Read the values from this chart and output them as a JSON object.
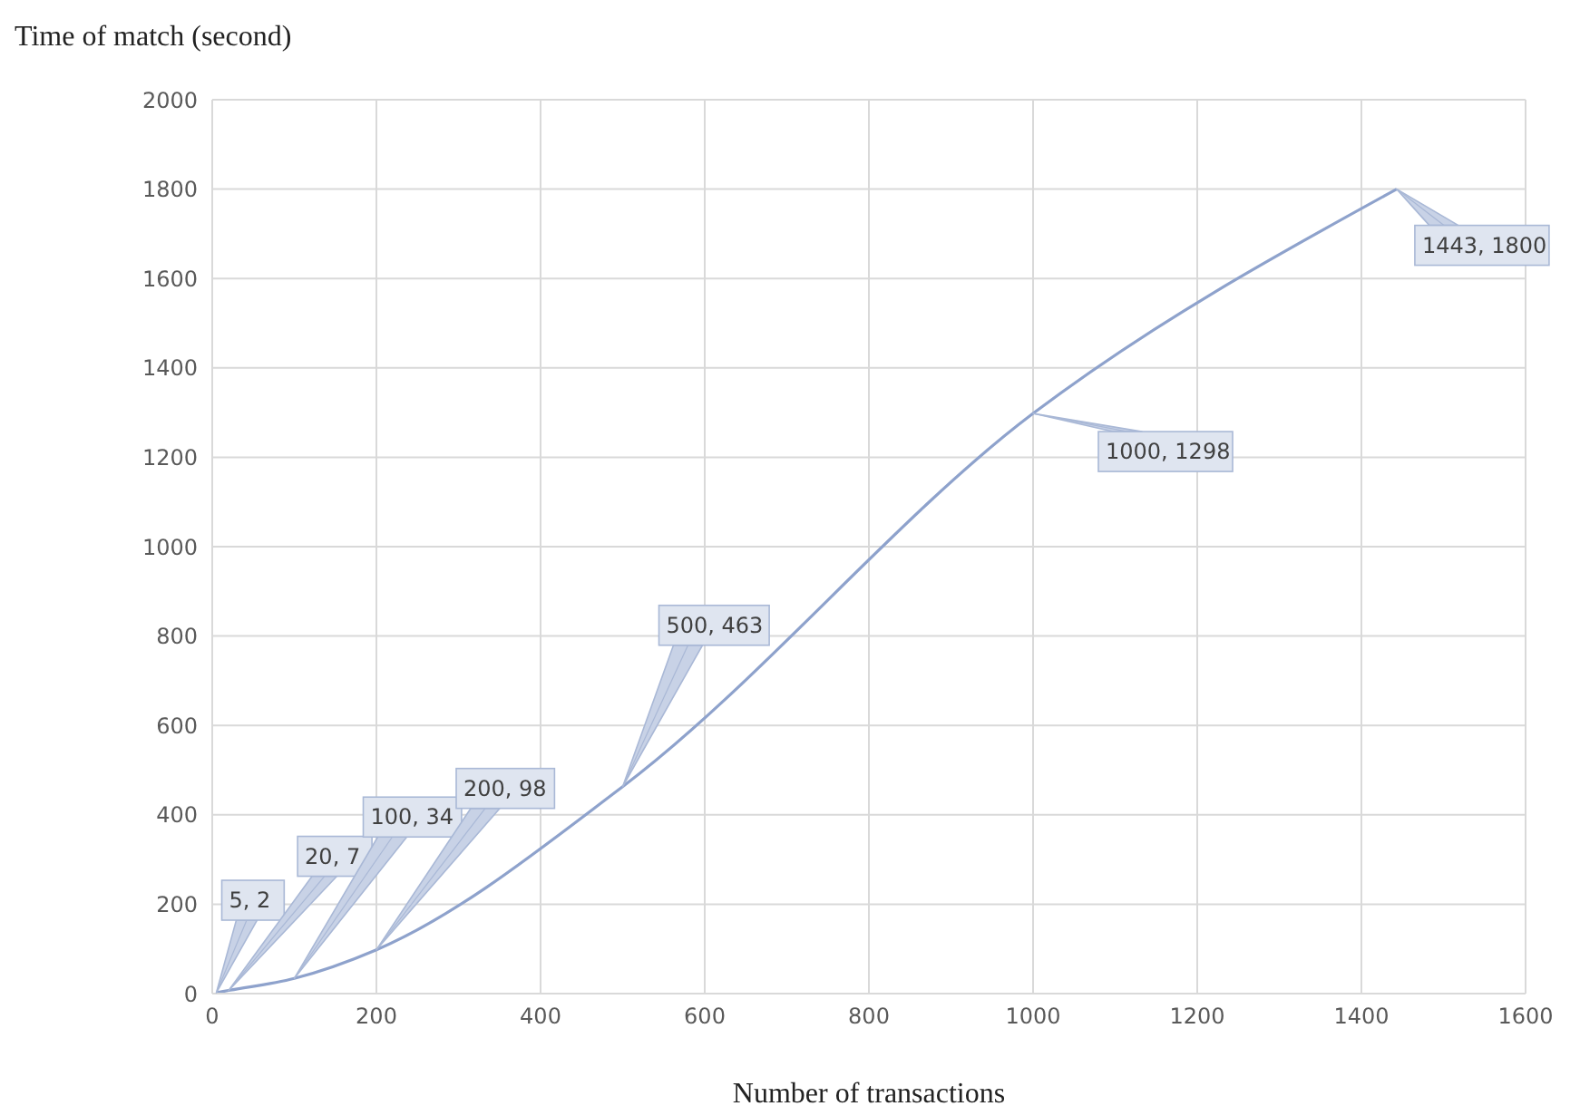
{
  "chart_data": {
    "type": "line",
    "xlabel": "Number of transactions",
    "ylabel": "Time of match (second)",
    "x": [
      5,
      20,
      100,
      200,
      500,
      1000,
      1443
    ],
    "series": [
      {
        "color": "#8ea2cc",
        "values": [
          2,
          7,
          34,
          98,
          463,
          1298,
          1800
        ]
      }
    ],
    "annotations": [
      {
        "text": "5, 2",
        "x": 5,
        "y": 2
      },
      {
        "text": "20, 7",
        "x": 20,
        "y": 7
      },
      {
        "text": "100, 34",
        "x": 100,
        "y": 34
      },
      {
        "text": "200, 98",
        "x": 200,
        "y": 98
      },
      {
        "text": "500, 463",
        "x": 500,
        "y": 463
      },
      {
        "text": "1000, 1298",
        "x": 1000,
        "y": 1298
      },
      {
        "text": "1443, 1800",
        "x": 1443,
        "y": 1800
      }
    ],
    "xlim": [
      0,
      1600
    ],
    "xticks": [
      0,
      200,
      400,
      600,
      800,
      1000,
      1200,
      1400,
      1600
    ],
    "ylim": [
      0,
      2000
    ],
    "yticks": [
      0,
      200,
      400,
      600,
      800,
      1000,
      1200,
      1400,
      1600,
      1800,
      2000
    ],
    "grid": true,
    "marker": "none",
    "line_style": "solid"
  }
}
